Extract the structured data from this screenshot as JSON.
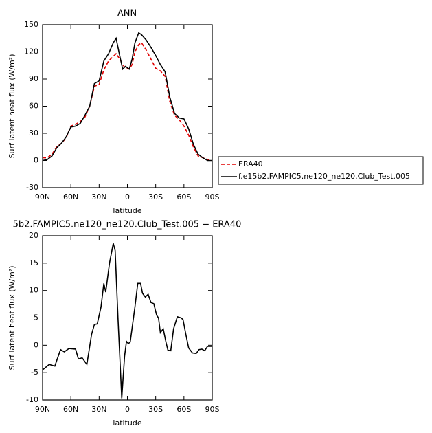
{
  "chart_data": [
    {
      "type": "line",
      "title": "ANN",
      "xlabel": "latitude",
      "ylabel": "Surf latent heat flux (W/m²)",
      "x": [
        90,
        85,
        80,
        75,
        70,
        65,
        60,
        55,
        50,
        45,
        40,
        35,
        30,
        25,
        20,
        15,
        12,
        8,
        5,
        2,
        -2,
        -5,
        -8,
        -12,
        -15,
        -20,
        -25,
        -30,
        -35,
        -40,
        -45,
        -50,
        -55,
        -60,
        -65,
        -70,
        -75,
        -80,
        -85,
        -90
      ],
      "series": [
        {
          "name": "ERA40",
          "color": "#e00000",
          "dash": true,
          "values": [
            3,
            3,
            7,
            15,
            19,
            25,
            38,
            40,
            43,
            48,
            60,
            82,
            84,
            100,
            110,
            115,
            118,
            112,
            106,
            102,
            101,
            106,
            120,
            128,
            130,
            122,
            112,
            102,
            99,
            93,
            65,
            50,
            45,
            38,
            28,
            15,
            5,
            3,
            1,
            0
          ]
        },
        {
          "name": "f.e15b2.FAMPIC5.ne120_ne120.Club_Test.005",
          "color": "#000000",
          "dash": false,
          "values": [
            0,
            1,
            5,
            14,
            19,
            26,
            37,
            38,
            41,
            50,
            60,
            85,
            88,
            110,
            118,
            130,
            135,
            115,
            101,
            104,
            101,
            112,
            130,
            141,
            139,
            133,
            125,
            116,
            106,
            98,
            70,
            52,
            47,
            46,
            35,
            18,
            7,
            3,
            0,
            0
          ]
        }
      ],
      "xlim": [
        90,
        -90
      ],
      "xticks": [
        {
          "value": 90,
          "label": "90N"
        },
        {
          "value": 60,
          "label": "60N"
        },
        {
          "value": 30,
          "label": "30N"
        },
        {
          "value": 0,
          "label": "0"
        },
        {
          "value": -30,
          "label": "30S"
        },
        {
          "value": -60,
          "label": "60S"
        },
        {
          "value": -90,
          "label": "90S"
        }
      ],
      "ylim": [
        -30,
        150
      ],
      "yticks": [
        -30,
        0,
        30,
        60,
        90,
        120,
        150
      ],
      "legend": "outside-right"
    },
    {
      "type": "line",
      "title": "5b2.FAMPIC5.ne120_ne120.Club_Test.005 − ERA40",
      "xlabel": "latitude",
      "ylabel": "Surf latent heat flux (W/m²)",
      "x": [
        90,
        83,
        77,
        71,
        67,
        62,
        55,
        52,
        48,
        43,
        38,
        35,
        32,
        28,
        25,
        23,
        19,
        15,
        13,
        10,
        6,
        3,
        1,
        -1,
        -3,
        -8,
        -11,
        -14,
        -16,
        -19,
        -22,
        -25,
        -28,
        -31,
        -33,
        -35,
        -38,
        -41,
        -43,
        -46,
        -49,
        -53,
        -57,
        -59,
        -62,
        -65,
        -69,
        -73,
        -76,
        -79,
        -82,
        -85,
        -90
      ],
      "color": "#000000",
      "values": [
        -4.5,
        -3.5,
        -3.8,
        -0.8,
        -1.2,
        -0.6,
        -0.7,
        -2.5,
        -2.3,
        -3.5,
        2,
        3.8,
        3.9,
        7,
        11.3,
        9.7,
        15,
        18.6,
        17.3,
        5,
        -9.7,
        -2,
        0.7,
        0.3,
        0.6,
        7,
        11.3,
        11.3,
        9.5,
        8.8,
        9.3,
        7.8,
        7.6,
        5.5,
        5,
        2.3,
        3,
        0.5,
        -0.9,
        -1,
        3,
        5.2,
        5,
        4.7,
        2,
        -0.5,
        -1.4,
        -1.5,
        -0.8,
        -0.7,
        -1,
        -0.2,
        -0.2
      ],
      "xlim": [
        90,
        -90
      ],
      "xticks": [
        {
          "value": 90,
          "label": "90N"
        },
        {
          "value": 60,
          "label": "60N"
        },
        {
          "value": 30,
          "label": "30N"
        },
        {
          "value": 0,
          "label": "0"
        },
        {
          "value": -30,
          "label": "30S"
        },
        {
          "value": -60,
          "label": "60S"
        },
        {
          "value": -90,
          "label": "90S"
        }
      ],
      "ylim": [
        -10,
        20
      ],
      "yticks": [
        -10,
        -5,
        0,
        5,
        10,
        15,
        20
      ]
    }
  ]
}
